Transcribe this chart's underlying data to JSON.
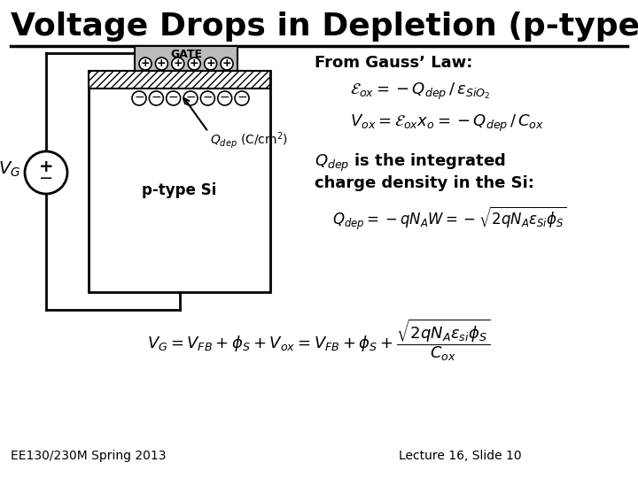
{
  "title": "Voltage Drops in Depletion (p-type Si)",
  "title_fontsize": 26,
  "bg_color": "#ffffff",
  "text_color": "#000000",
  "footer_left": "EE130/230M Spring 2013",
  "footer_right": "Lecture 16, Slide 10",
  "from_gauss_text": "From Gauss’ Law:",
  "eq1": "$\\mathcal{E}_{ox} = -Q_{dep} \\, / \\, \\varepsilon_{SiO_2}$",
  "eq2": "$V_{ox} = \\mathcal{E}_{ox} x_o = -Q_{dep} \\, / \\, C_{ox}$",
  "eq3": "$Q_{dep} = -qN_A W = -\\sqrt{2qN_A \\varepsilon_{Si} \\phi_S}$",
  "eq4": "$V_G = V_{FB} + \\phi_S + V_{ox} = V_{FB} + \\phi_S + \\dfrac{\\sqrt{2qN_A\\varepsilon_{si}\\phi_S}}{C_{ox}}$"
}
